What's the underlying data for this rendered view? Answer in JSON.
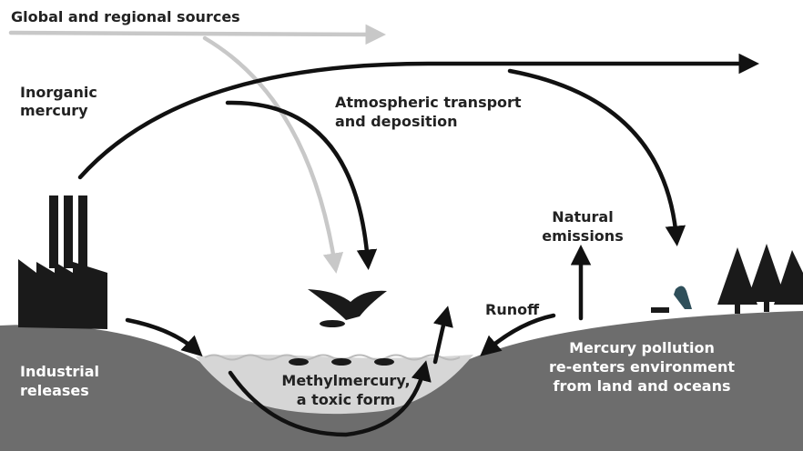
{
  "labels": {
    "global_sources": [
      "Global and regional sources"
    ],
    "inorganic": [
      "Inorganic",
      "mercury"
    ],
    "atmospheric": [
      "Atmospheric transport",
      "and deposition"
    ],
    "natural": [
      "Natural",
      "emissions"
    ],
    "runoff": [
      "Runoff"
    ],
    "industrial": [
      "Industrial",
      "releases"
    ],
    "methyl": [
      "Methylmercury,",
      "a toxic form"
    ],
    "reenters": [
      "Mercury pollution",
      "re-enters environment",
      "from land and oceans"
    ]
  }
}
